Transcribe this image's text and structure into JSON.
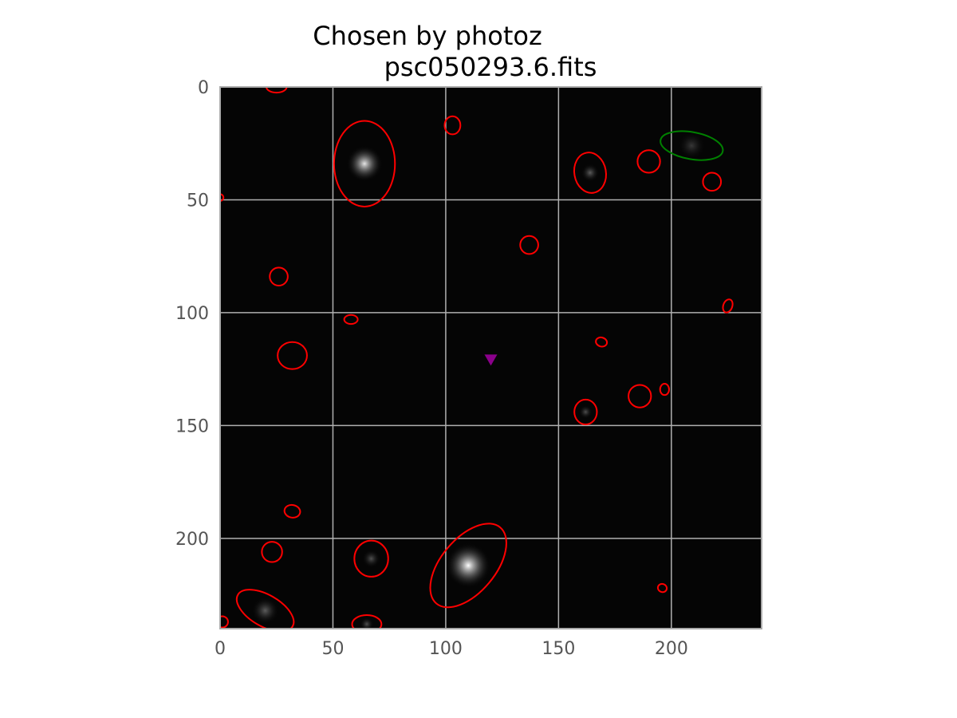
{
  "chart_data": {
    "type": "image",
    "title_lines": [
      "Chosen by photoz",
      "psc050293.6.fits"
    ],
    "xlabel": "",
    "ylabel": "",
    "xlim": [
      0,
      240
    ],
    "ylim": [
      240,
      0
    ],
    "y_inverted": true,
    "grid": true,
    "x_ticks": [
      0,
      50,
      100,
      150,
      200
    ],
    "y_ticks": [
      0,
      50,
      100,
      150,
      200
    ],
    "x_tick_labels": [
      "0",
      "50",
      "100",
      "150",
      "200"
    ],
    "y_tick_labels": [
      "0",
      "50",
      "100",
      "150",
      "200"
    ],
    "sources": [
      {
        "name": "galaxy-ellipse",
        "x": 25,
        "y": 0,
        "a": 4.5,
        "b": 2.5,
        "angle": 0,
        "color": "#ff0000"
      },
      {
        "name": "galaxy-ellipse",
        "x": 64,
        "y": 34,
        "a": 13.5,
        "b": 19,
        "angle": 0,
        "color": "#ff0000"
      },
      {
        "name": "galaxy-ellipse",
        "x": 103,
        "y": 17,
        "a": 3.5,
        "b": 4,
        "angle": 0,
        "color": "#ff0000"
      },
      {
        "name": "galaxy-ellipse",
        "x": 164,
        "y": 38,
        "a": 7,
        "b": 9,
        "angle": -10,
        "color": "#ff0000"
      },
      {
        "name": "galaxy-ellipse",
        "x": 190,
        "y": 33,
        "a": 5,
        "b": 5,
        "angle": 0,
        "color": "#ff0000"
      },
      {
        "name": "galaxy-ellipse",
        "x": 209,
        "y": 26,
        "a": 14,
        "b": 6,
        "angle": 10,
        "color": "#008000"
      },
      {
        "name": "galaxy-ellipse",
        "x": 218,
        "y": 42,
        "a": 4,
        "b": 4,
        "angle": 0,
        "color": "#ff0000"
      },
      {
        "name": "galaxy-ellipse",
        "x": 0,
        "y": 49,
        "a": 1.5,
        "b": 1.5,
        "angle": 0,
        "color": "#ff0000"
      },
      {
        "name": "galaxy-ellipse",
        "x": 137,
        "y": 70,
        "a": 4,
        "b": 4,
        "angle": 0,
        "color": "#ff0000"
      },
      {
        "name": "galaxy-ellipse",
        "x": 26,
        "y": 84,
        "a": 4,
        "b": 4,
        "angle": 0,
        "color": "#ff0000"
      },
      {
        "name": "galaxy-ellipse",
        "x": 225,
        "y": 97,
        "a": 2,
        "b": 3,
        "angle": 20,
        "color": "#ff0000"
      },
      {
        "name": "galaxy-ellipse",
        "x": 58,
        "y": 103,
        "a": 3,
        "b": 2,
        "angle": 0,
        "color": "#ff0000"
      },
      {
        "name": "galaxy-ellipse",
        "x": 32,
        "y": 119,
        "a": 6.5,
        "b": 6,
        "angle": 0,
        "color": "#ff0000"
      },
      {
        "name": "galaxy-ellipse",
        "x": 169,
        "y": 113,
        "a": 2.5,
        "b": 2,
        "angle": 15,
        "color": "#ff0000"
      },
      {
        "name": "galaxy-ellipse",
        "x": 197,
        "y": 134,
        "a": 2,
        "b": 2.5,
        "angle": 0,
        "color": "#ff0000"
      },
      {
        "name": "galaxy-ellipse",
        "x": 186,
        "y": 137,
        "a": 5,
        "b": 5,
        "angle": 0,
        "color": "#ff0000"
      },
      {
        "name": "galaxy-ellipse",
        "x": 162,
        "y": 144,
        "a": 5,
        "b": 5.5,
        "angle": 0,
        "color": "#ff0000"
      },
      {
        "name": "galaxy-ellipse",
        "x": 32,
        "y": 188,
        "a": 3.5,
        "b": 2.8,
        "angle": 10,
        "color": "#ff0000"
      },
      {
        "name": "galaxy-ellipse",
        "x": 23,
        "y": 206,
        "a": 4.5,
        "b": 4.5,
        "angle": 0,
        "color": "#ff0000"
      },
      {
        "name": "galaxy-ellipse",
        "x": 67,
        "y": 209,
        "a": 7.5,
        "b": 8,
        "angle": 0,
        "color": "#ff0000"
      },
      {
        "name": "galaxy-ellipse",
        "x": 110,
        "y": 212,
        "a": 22,
        "b": 12,
        "angle": -50,
        "color": "#ff0000"
      },
      {
        "name": "galaxy-ellipse",
        "x": 20,
        "y": 232,
        "a": 14,
        "b": 7,
        "angle": 30,
        "color": "#ff0000"
      },
      {
        "name": "galaxy-ellipse",
        "x": 196,
        "y": 222,
        "a": 2,
        "b": 1.8,
        "angle": 20,
        "color": "#ff0000"
      },
      {
        "name": "galaxy-ellipse",
        "x": 65,
        "y": 238,
        "a": 6.5,
        "b": 4,
        "angle": 0,
        "color": "#ff0000"
      },
      {
        "name": "galaxy-ellipse",
        "x": 1,
        "y": 237,
        "a": 2.5,
        "b": 2.5,
        "angle": 0,
        "color": "#ff0000"
      }
    ],
    "glows": [
      {
        "x": 64,
        "y": 34,
        "size": 8,
        "intensity": 0.9
      },
      {
        "x": 110,
        "y": 212,
        "size": 10,
        "intensity": 1.0
      },
      {
        "x": 164,
        "y": 38,
        "size": 4,
        "intensity": 0.35
      },
      {
        "x": 209,
        "y": 26,
        "size": 6,
        "intensity": 0.2
      },
      {
        "x": 20,
        "y": 232,
        "size": 6,
        "intensity": 0.35
      },
      {
        "x": 67,
        "y": 209,
        "size": 4,
        "intensity": 0.3
      },
      {
        "x": 162,
        "y": 144,
        "size": 3,
        "intensity": 0.3
      },
      {
        "x": 65,
        "y": 238,
        "size": 3,
        "intensity": 0.3
      }
    ],
    "marker": {
      "name": "target-marker",
      "x": 120,
      "y": 121,
      "shape": "triangle-down",
      "color": "#8b008b"
    },
    "colors": {
      "background": "#050505",
      "grid": "#b0b0b0",
      "frame": "#aaaaaa",
      "tick_label": "#555555"
    }
  }
}
